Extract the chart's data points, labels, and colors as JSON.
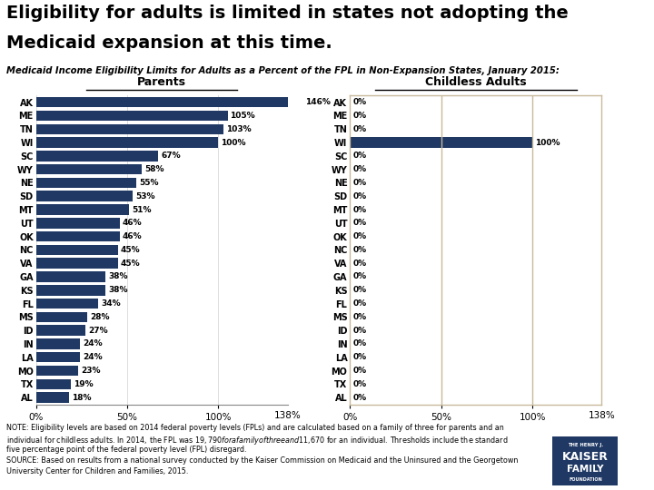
{
  "title_line1": "Eligibility for adults is limited in states not adopting the",
  "title_line2": "Medicaid expansion at this time.",
  "subtitle": "Medicaid Income Eligibility Limits for Adults as a Percent of the FPL in Non-Expansion States, January 2015:",
  "states": [
    "AK",
    "ME",
    "TN",
    "WI",
    "SC",
    "WY",
    "NE",
    "SD",
    "MT",
    "UT",
    "OK",
    "NC",
    "VA",
    "GA",
    "KS",
    "FL",
    "MS",
    "ID",
    "IN",
    "LA",
    "MO",
    "TX",
    "AL"
  ],
  "parents_values": [
    146,
    105,
    103,
    100,
    67,
    58,
    55,
    53,
    51,
    46,
    46,
    45,
    45,
    38,
    38,
    34,
    28,
    27,
    24,
    24,
    23,
    19,
    18
  ],
  "childless_values": [
    0,
    0,
    0,
    100,
    0,
    0,
    0,
    0,
    0,
    0,
    0,
    0,
    0,
    0,
    0,
    0,
    0,
    0,
    0,
    0,
    0,
    0,
    0
  ],
  "bar_color": "#1F3864",
  "xmax": 138,
  "note_line1": "NOTE: Eligibility levels are based on 2014 federal poverty levels (FPLs) and are calculated based on a family of three for parents and an",
  "note_line2": "individual for childless adults. In 2014, the FPL was $19,790 for a family of three and $11,670 for an individual. Thresholds include the standard",
  "note_line3": "five percentage point of the federal poverty level (FPL) disregard.",
  "note_line4": "SOURCE: Based on results from a national survey conducted by the Kaiser Commission on Medicaid and the Uninsured and the Georgetown",
  "note_line5": "University Center for Children and Families, 2015.",
  "bg_color": "#FFFFFF",
  "grid_color": "#CCCCCC",
  "spine_color": "#C8B99A"
}
